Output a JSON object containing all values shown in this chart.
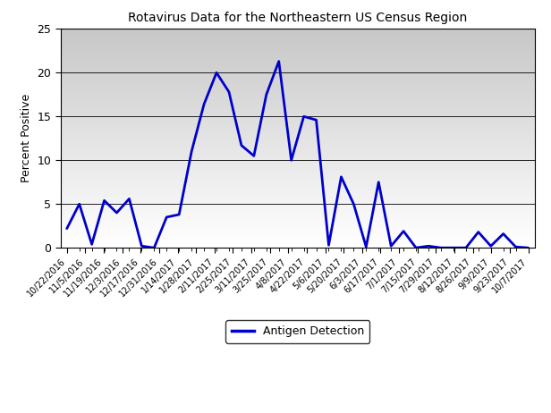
{
  "title": "Rotavirus Data for the Northeastern US Census Region",
  "ylabel": "Percent Positive",
  "ylim": [
    0,
    25
  ],
  "yticks": [
    0,
    5,
    10,
    15,
    20,
    25
  ],
  "line_color": "#0000CC",
  "line_width": 2.0,
  "legend_label": "Antigen Detection",
  "x_labels": [
    "10/22/2016",
    "11/5/2016",
    "11/19/2016",
    "12/3/2016",
    "12/17/2016",
    "12/31/2016",
    "1/14/2017",
    "1/28/2017",
    "2/11/2017",
    "2/25/2017",
    "3/11/2017",
    "3/25/2017",
    "4/8/2017",
    "4/22/2017",
    "5/6/2017",
    "5/20/2017",
    "6/3/2017",
    "6/17/2017",
    "7/1/2017",
    "7/15/2017",
    "7/29/2017",
    "8/12/2017",
    "8/26/2017",
    "9/9/2017",
    "9/23/2017",
    "10/7/2017"
  ],
  "y_values": [
    2.2,
    5.0,
    0.4,
    5.4,
    4.0,
    5.6,
    0.2,
    0.0,
    3.5,
    3.8,
    11.0,
    16.4,
    20.0,
    17.8,
    11.7,
    10.5,
    17.5,
    21.3,
    10.0,
    15.0,
    14.6,
    0.3,
    8.1,
    5.0,
    0.1,
    7.5,
    0.2,
    1.9,
    0.0,
    0.2,
    0.0,
    0.0,
    0.0,
    1.8,
    0.2,
    1.6,
    0.1,
    0.0
  ],
  "n_points": 38,
  "n_labels": 26
}
